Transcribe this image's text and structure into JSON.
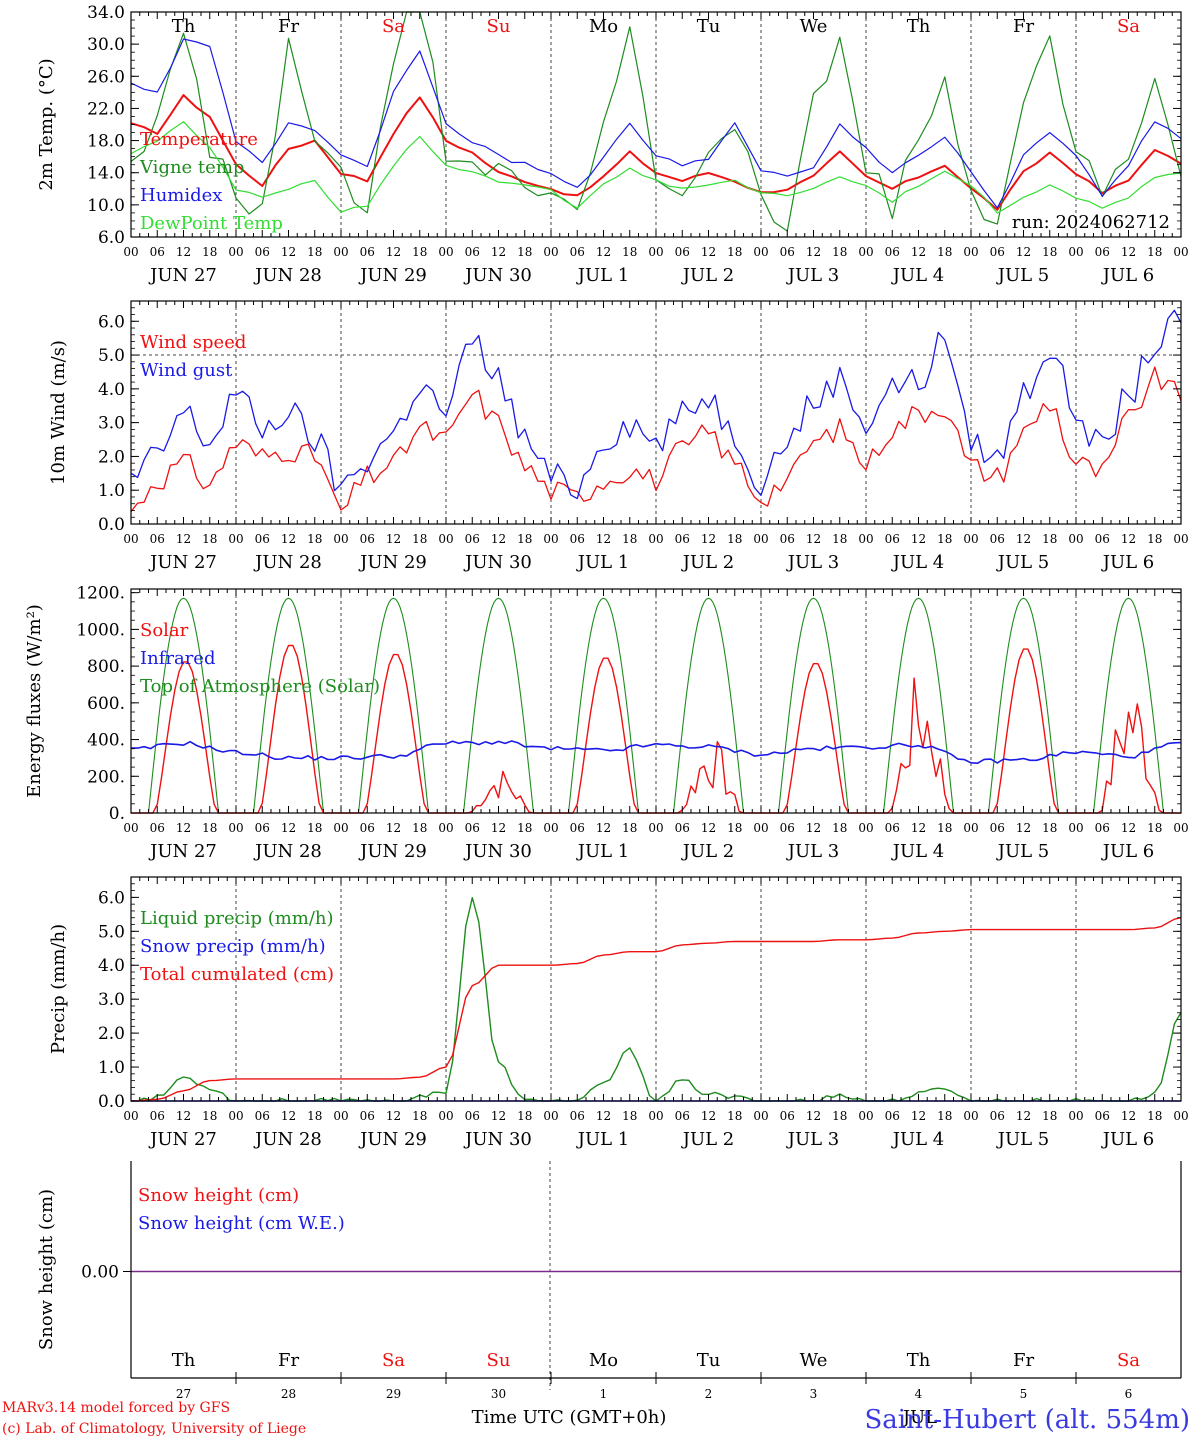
{
  "colors": {
    "red": "#ee1111",
    "blue": "#1a1ae6",
    "darkgreen": "#1e8c1e",
    "lightgreen": "#33dd33",
    "purple": "#7a2a8a",
    "axis": "#000000"
  },
  "x_axis": {
    "hour_labels": [
      "00",
      "06",
      "12",
      "18"
    ],
    "final_hour_label": "00",
    "dates": [
      "JUN 27",
      "JUN 28",
      "JUN 29",
      "JUN 30",
      "JUL  1",
      "JUL  2",
      "JUL  3",
      "JUL  4",
      "JUL  5",
      "JUL  6"
    ],
    "weekdays": [
      {
        "label": "Th",
        "weekend": false
      },
      {
        "label": "Fr",
        "weekend": false
      },
      {
        "label": "Sa",
        "weekend": true
      },
      {
        "label": "Su",
        "weekend": true
      },
      {
        "label": "Mo",
        "weekend": false
      },
      {
        "label": "Tu",
        "weekend": false
      },
      {
        "label": "We",
        "weekend": false
      },
      {
        "label": "Th",
        "weekend": false
      },
      {
        "label": "Fr",
        "weekend": false
      },
      {
        "label": "Sa",
        "weekend": true
      }
    ],
    "bottom_day_numbers": [
      "27",
      "28",
      "29",
      "30",
      "1",
      "2",
      "3",
      "4",
      "5",
      "6"
    ],
    "bottom_month": "JUL",
    "time_label": "Time UTC (GMT+0h)"
  },
  "footer": {
    "credit_line1": "MARv3.14 model forced by GFS",
    "credit_line2": "(c) Lab. of Climatology, University of Liege",
    "station": "Saint-Hubert (alt. 554m)"
  },
  "chart_data": [
    {
      "id": "temp",
      "type": "line",
      "ylabel": "2m Temp. (°C)",
      "ylim": [
        6,
        34
      ],
      "yticks": [
        "6.0",
        "10.0",
        "14.0",
        "18.0",
        "22.0",
        "26.0",
        "30.0",
        "34.0"
      ],
      "run_label": "run: 2024062712",
      "x_hours": [
        0,
        6,
        12,
        18,
        24,
        30,
        36,
        42,
        48,
        54,
        60,
        66,
        72,
        78,
        84,
        90,
        96,
        102,
        108,
        114,
        120,
        126,
        132,
        138,
        144,
        150,
        156,
        162,
        168,
        174,
        180,
        186,
        192,
        198,
        204,
        210,
        216,
        222,
        228,
        234,
        240
      ],
      "series": [
        {
          "name": "Temperature",
          "color": "red",
          "values": [
            20,
            19,
            23.5,
            21,
            15,
            12.5,
            17,
            18,
            14,
            13,
            19,
            23.5,
            18,
            16.5,
            14,
            13,
            12,
            11,
            13.5,
            16.5,
            14,
            13,
            14,
            13,
            11.5,
            12,
            13.5,
            16.5,
            13.5,
            12,
            13.5,
            15,
            12,
            9.5,
            14,
            16.5,
            14,
            11.5,
            13,
            17,
            15
          ]
        },
        {
          "name": "Vigne temp",
          "color": "darkgreen",
          "values": [
            16,
            20,
            32,
            17,
            11,
            10,
            30,
            19,
            13,
            10,
            28,
            40,
            17,
            16,
            14,
            12,
            12,
            8,
            22,
            31,
            13,
            10,
            18,
            21,
            12,
            7,
            23,
            30,
            15,
            10,
            18,
            25,
            13,
            6,
            23,
            31,
            17,
            11,
            16,
            27,
            14
          ]
        },
        {
          "name": "Humidex",
          "color": "blue",
          "values": [
            25,
            24,
            30.5,
            30,
            18,
            15,
            20.5,
            19,
            16,
            15,
            24,
            29,
            20,
            18,
            16,
            15,
            14,
            12,
            16,
            20,
            16,
            15,
            15.5,
            20,
            14,
            13.5,
            14.5,
            20,
            17,
            14,
            16,
            18.5,
            14,
            9.5,
            16,
            19,
            16,
            11,
            15,
            20.5,
            18
          ]
        },
        {
          "name": "DewPoint Temp",
          "color": "lightgreen",
          "values": [
            16.5,
            18,
            20.5,
            17,
            12,
            11,
            12,
            13,
            9,
            10,
            15,
            18.5,
            15,
            14,
            13,
            12.5,
            12,
            9.5,
            12.5,
            14.5,
            13,
            12,
            12.5,
            13,
            11.5,
            11,
            12,
            13.5,
            12.5,
            10.5,
            12.5,
            14,
            12.5,
            9,
            11,
            12.5,
            11,
            9.5,
            11,
            13.5,
            14
          ]
        }
      ]
    },
    {
      "id": "wind",
      "type": "line",
      "ylabel": "10m Wind (m/s)",
      "ylim": [
        0,
        6.6
      ],
      "yticks": [
        "0.0",
        "1.0",
        "2.0",
        "3.0",
        "4.0",
        "5.0",
        "6.0"
      ],
      "reference_line": 5,
      "x_hours": [
        0,
        6,
        12,
        18,
        24,
        30,
        36,
        42,
        48,
        54,
        60,
        66,
        72,
        78,
        84,
        90,
        96,
        102,
        108,
        114,
        120,
        126,
        132,
        138,
        144,
        150,
        156,
        162,
        168,
        174,
        180,
        186,
        192,
        198,
        204,
        210,
        216,
        222,
        228,
        234,
        240
      ],
      "series": [
        {
          "name": "Wind speed",
          "color": "red",
          "values": [
            0.4,
            1.3,
            1.8,
            1.2,
            2.4,
            2.0,
            2.2,
            2.0,
            0.4,
            1.4,
            1.8,
            2.8,
            2.5,
            3.8,
            3.0,
            1.7,
            1.0,
            0.8,
            1.3,
            1.6,
            1.3,
            2.2,
            2.7,
            1.8,
            0.8,
            1.3,
            2.4,
            2.8,
            1.8,
            2.8,
            3.3,
            3.5,
            1.7,
            1.4,
            2.7,
            3.6,
            1.8,
            1.5,
            3.1,
            4.3,
            3.8
          ]
        },
        {
          "name": "Wind gust",
          "color": "blue",
          "values": [
            1.3,
            2.0,
            3.3,
            2.4,
            3.9,
            2.8,
            3.3,
            2.5,
            1.1,
            1.9,
            2.7,
            4.1,
            3.3,
            5.4,
            4.3,
            2.5,
            1.4,
            1.1,
            2.5,
            3.0,
            2.4,
            3.2,
            3.8,
            2.6,
            1.3,
            2.5,
            3.6,
            4.3,
            3.0,
            4.1,
            4.2,
            5.5,
            2.5,
            1.9,
            3.9,
            5.2,
            3.3,
            2.2,
            3.8,
            5.3,
            6.0
          ]
        }
      ]
    },
    {
      "id": "energy",
      "type": "line",
      "ylabel": "Energy fluxes (W/m²)",
      "ylim": [
        0,
        1220
      ],
      "yticks": [
        "0.",
        "200.",
        "400.",
        "600.",
        "800.",
        "1000.",
        "1200."
      ],
      "legend": [
        {
          "name": "Solar",
          "color": "red"
        },
        {
          "name": "Infrared",
          "color": "blue"
        },
        {
          "name": "Top of Atmosphere (Solar)",
          "color": "darkgreen"
        }
      ],
      "toa_daily_peak": 1170,
      "toa_day_length_hours": 16,
      "solar_daily_peak": [
        830,
        920,
        870,
        200,
        850,
        350,
        820,
        640,
        900,
        620
      ],
      "infrared_hours": [
        0,
        12,
        24,
        36,
        48,
        60,
        72,
        84,
        96,
        108,
        120,
        132,
        144,
        156,
        168,
        180,
        192,
        204,
        216,
        228,
        240
      ],
      "infrared_values": [
        345,
        380,
        330,
        300,
        300,
        310,
        380,
        385,
        350,
        340,
        370,
        360,
        320,
        350,
        360,
        370,
        280,
        290,
        330,
        310,
        380
      ]
    },
    {
      "id": "precip",
      "type": "line",
      "ylabel": "Precip (mm/h)",
      "ylim": [
        0,
        6.6
      ],
      "yticks": [
        "0.0",
        "1.0",
        "2.0",
        "3.0",
        "4.0",
        "5.0",
        "6.0"
      ],
      "x_hours": [
        0,
        6,
        12,
        18,
        24,
        30,
        36,
        42,
        48,
        54,
        60,
        66,
        72,
        78,
        84,
        90,
        96,
        102,
        108,
        114,
        120,
        126,
        132,
        138,
        144,
        150,
        156,
        162,
        168,
        174,
        180,
        186,
        192,
        198,
        204,
        210,
        216,
        222,
        228,
        234,
        240
      ],
      "series": [
        {
          "name": "Liquid precip (mm/h)",
          "color": "darkgreen",
          "values": [
            0,
            0.1,
            0.7,
            0.4,
            0,
            0,
            0,
            0,
            0,
            0,
            0,
            0.1,
            0.3,
            6.0,
            1.1,
            0,
            0,
            0,
            0.5,
            1.5,
            0,
            0.6,
            0.2,
            0.1,
            0,
            0,
            0,
            0.2,
            0,
            0,
            0.2,
            0.4,
            0,
            0,
            0,
            0,
            0,
            0,
            0,
            0.2,
            2.6
          ]
        },
        {
          "name": "Snow precip (mm/h)",
          "color": "blue",
          "values": [
            0,
            0,
            0,
            0,
            0,
            0,
            0,
            0,
            0,
            0,
            0,
            0,
            0,
            0,
            0,
            0,
            0,
            0,
            0,
            0,
            0,
            0,
            0,
            0,
            0,
            0,
            0,
            0,
            0,
            0,
            0,
            0,
            0,
            0,
            0,
            0,
            0,
            0,
            0,
            0,
            0
          ]
        },
        {
          "name": "Total cumulated (cm)",
          "color": "red",
          "values": [
            0,
            0.05,
            0.3,
            0.6,
            0.65,
            0.65,
            0.65,
            0.65,
            0.65,
            0.65,
            0.65,
            0.7,
            1.0,
            3.4,
            4.0,
            4.0,
            4.0,
            4.05,
            4.3,
            4.4,
            4.4,
            4.6,
            4.65,
            4.7,
            4.7,
            4.7,
            4.7,
            4.75,
            4.75,
            4.8,
            4.95,
            5.0,
            5.05,
            5.05,
            5.05,
            5.05,
            5.05,
            5.05,
            5.05,
            5.1,
            5.4
          ]
        }
      ]
    },
    {
      "id": "snow",
      "type": "line",
      "ylabel": "Snow height (cm)",
      "ytick": "0.00",
      "series": [
        {
          "name": "Snow height (cm)",
          "color": "red",
          "values": [
            0,
            0
          ]
        },
        {
          "name": "Snow height (cm W.E.)",
          "color": "blue",
          "values": [
            0,
            0
          ]
        }
      ]
    }
  ]
}
